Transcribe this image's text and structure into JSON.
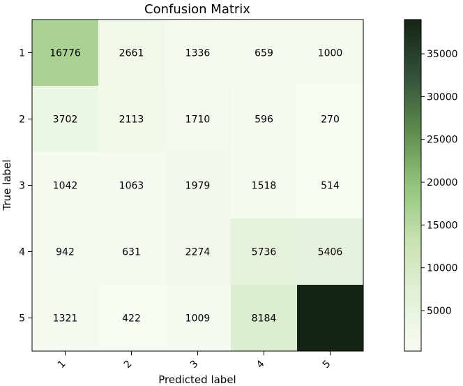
{
  "chart_data": {
    "type": "heatmap",
    "title": "Confusion Matrix",
    "xlabel": "Predicted label",
    "ylabel": "True label",
    "x_categories": [
      "1",
      "2",
      "3",
      "4",
      "5"
    ],
    "y_categories": [
      "1",
      "2",
      "3",
      "4",
      "5"
    ],
    "values": [
      [
        16776,
        2661,
        1336,
        659,
        1000
      ],
      [
        3702,
        2113,
        1710,
        596,
        270
      ],
      [
        1042,
        1063,
        1979,
        1518,
        514
      ],
      [
        942,
        631,
        2274,
        5736,
        5406
      ],
      [
        1321,
        422,
        1009,
        8184,
        39000
      ]
    ],
    "cell_labels": [
      [
        "16776",
        "2661",
        "1336",
        "659",
        "1000"
      ],
      [
        "3702",
        "2113",
        "1710",
        "596",
        "270"
      ],
      [
        "1042",
        "1063",
        "1979",
        "1518",
        "514"
      ],
      [
        "942",
        "631",
        "2274",
        "5736",
        "5406"
      ],
      [
        "1321",
        "422",
        "1009",
        "8184",
        ""
      ]
    ],
    "colorbar": {
      "range": [
        270,
        39000
      ],
      "ticks": [
        5000,
        10000,
        15000,
        20000,
        25000,
        30000,
        35000
      ],
      "tick_labels": [
        "5000",
        "10000",
        "15000",
        "20000",
        "25000",
        "30000",
        "35000"
      ],
      "colormap": [
        "#f7fcf3",
        "#e3f0d8",
        "#c8e2b2",
        "#93c47d",
        "#5f8a4e",
        "#32503a",
        "#142414"
      ]
    },
    "grid": false
  }
}
